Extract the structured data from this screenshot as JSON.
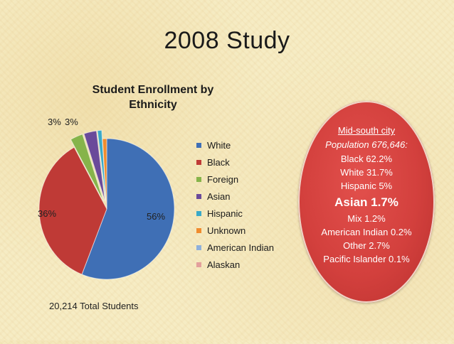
{
  "slide": {
    "title": "2008 Study",
    "total_label": "20,214 Total Students"
  },
  "chart_data": {
    "type": "pie",
    "title": "Student Enrollment by Ethnicity",
    "title_lines": [
      "Student Enrollment by",
      "Ethnicity"
    ],
    "legend_position": "right",
    "categories": [
      "White",
      "Black",
      "Foreign",
      "Asian",
      "Hispanic",
      "Unknown",
      "American Indian",
      "Alaskan"
    ],
    "values": [
      56,
      36,
      3,
      3,
      1,
      1,
      0,
      0
    ],
    "data_labels": [
      "56%",
      "36%",
      "3%",
      "3%",
      "",
      "",
      "",
      ""
    ],
    "colors": [
      "#3f6fb5",
      "#bf3a36",
      "#86b44a",
      "#6a4a9a",
      "#3aa9c8",
      "#f08c2e",
      "#8fb0db",
      "#e3a09c"
    ],
    "exploded": [
      false,
      false,
      true,
      true,
      true,
      false,
      false,
      false
    ]
  },
  "callout": {
    "heading": "Mid-south city",
    "population": "Population 676,646:",
    "lines": [
      "Black 62.2%",
      "White 31.7%",
      "Hispanic 5%"
    ],
    "highlight": "Asian 1.7%",
    "lines2": [
      "Mix 1.2%",
      "American Indian 0.2%",
      "Other 2.7%",
      "Pacific Islander 0.1%"
    ]
  }
}
